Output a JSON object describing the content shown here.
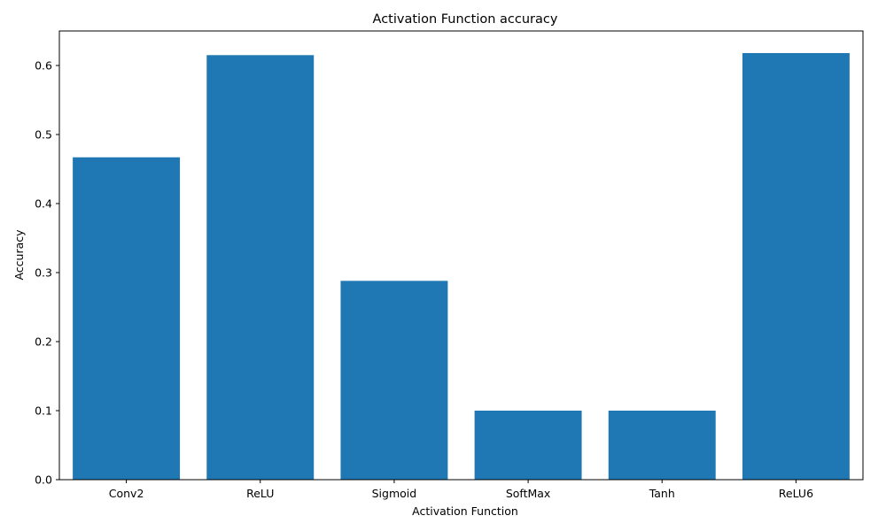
{
  "chart_data": {
    "type": "bar",
    "title": "Activation Function accuracy",
    "xlabel": "Activation Function",
    "ylabel": "Accuracy",
    "categories": [
      "Conv2",
      "ReLU",
      "Sigmoid",
      "SoftMax",
      "Tanh",
      "ReLU6"
    ],
    "values": [
      0.467,
      0.615,
      0.288,
      0.1,
      0.1,
      0.618
    ],
    "ylim": [
      0,
      0.65
    ],
    "yticks": [
      0.0,
      0.1,
      0.2,
      0.3,
      0.4,
      0.5,
      0.6
    ],
    "ytick_labels": [
      "0.0",
      "0.1",
      "0.2",
      "0.3",
      "0.4",
      "0.5",
      "0.6"
    ],
    "grid": false,
    "bar_color": "#1f77b4"
  }
}
